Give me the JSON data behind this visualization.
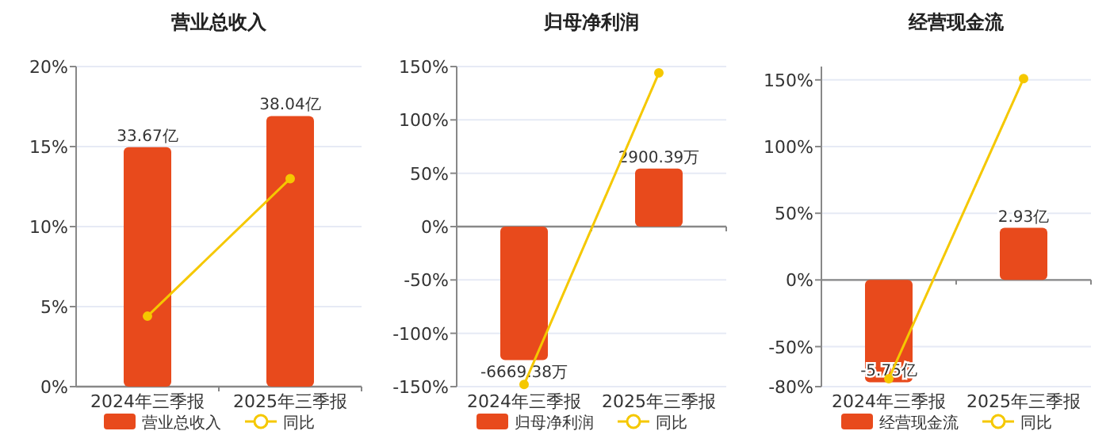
{
  "chart_data": [
    {
      "type": "bar",
      "title": "营业总收入",
      "categories": [
        "2024年三季报",
        "2025年三季报"
      ],
      "ylim": [
        0,
        20
      ],
      "yticks": [
        {
          "value": 0,
          "label": "0%"
        },
        {
          "value": 5,
          "label": "5%"
        },
        {
          "value": 10,
          "label": "10%"
        },
        {
          "value": 15,
          "label": "15%"
        },
        {
          "value": 20,
          "label": "20%"
        }
      ],
      "y2lim": [
        0,
        45
      ],
      "grid": "y",
      "legend": "bottom",
      "marker": "circle",
      "series": [
        {
          "name": "营业总收入",
          "color": "#e84a1c",
          "axis": "y2",
          "values": [
            33.67,
            38.04
          ],
          "value_labels": [
            "33.67亿",
            "38.04亿"
          ]
        },
        {
          "name": "同比",
          "type": "line",
          "color": "#f5c800",
          "values": [
            4.4,
            13.0
          ]
        }
      ]
    },
    {
      "type": "bar",
      "title": "归母净利润",
      "categories": [
        "2024年三季报",
        "2025年三季报"
      ],
      "ylim": [
        -150,
        150
      ],
      "yticks": [
        {
          "value": -150,
          "label": "-150%"
        },
        {
          "value": -100,
          "label": "-100%"
        },
        {
          "value": -50,
          "label": "-50%"
        },
        {
          "value": 0,
          "label": "0%"
        },
        {
          "value": 50,
          "label": "50%"
        },
        {
          "value": 100,
          "label": "100%"
        },
        {
          "value": 150,
          "label": "150%"
        }
      ],
      "y2lim": [
        -8000,
        8000
      ],
      "grid": "y",
      "legend": "bottom",
      "marker": "circle",
      "series": [
        {
          "name": "归母净利润",
          "color": "#e84a1c",
          "axis": "y2",
          "values": [
            -6669.38,
            2900.39
          ],
          "value_labels": [
            "-6669.38万",
            "2900.39万"
          ]
        },
        {
          "name": "同比",
          "type": "line",
          "color": "#f5c800",
          "values": [
            -148,
            144
          ]
        }
      ]
    },
    {
      "type": "bar",
      "title": "经营现金流",
      "categories": [
        "2024年三季报",
        "2025年三季报"
      ],
      "ylim": [
        -80,
        160
      ],
      "yticks": [
        {
          "value": -80,
          "label": "-80%"
        },
        {
          "value": -50,
          "label": "-50%"
        },
        {
          "value": 0,
          "label": "0%"
        },
        {
          "value": 50,
          "label": "50%"
        },
        {
          "value": 100,
          "label": "100%"
        },
        {
          "value": 150,
          "label": "150%"
        }
      ],
      "y2lim": [
        -6,
        12
      ],
      "grid": "y",
      "legend": "bottom",
      "marker": "circle",
      "series": [
        {
          "name": "经营现金流",
          "color": "#e84a1c",
          "axis": "y2",
          "values": [
            -5.75,
            2.93
          ],
          "value_labels": [
            "-5.75亿",
            "2.93亿"
          ]
        },
        {
          "name": "同比",
          "type": "line",
          "color": "#f5c800",
          "values": [
            -74,
            151
          ]
        }
      ]
    }
  ]
}
